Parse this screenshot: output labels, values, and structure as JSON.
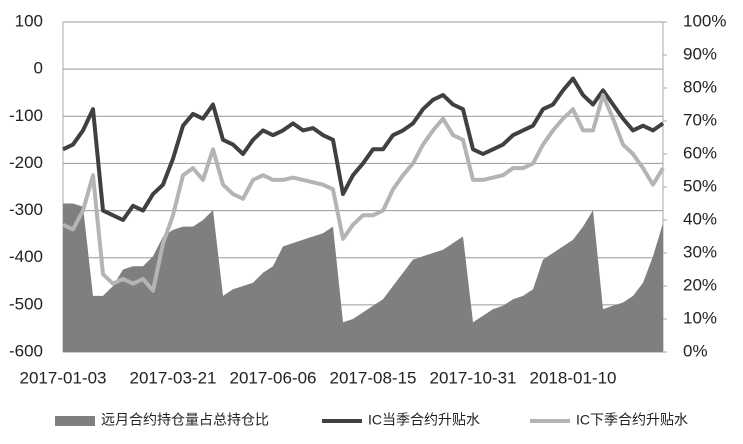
{
  "chart_data": {
    "type": "combo",
    "categories": [
      "2017-01-03",
      null,
      null,
      null,
      null,
      null,
      null,
      null,
      null,
      null,
      null,
      "2017-03-21",
      null,
      null,
      null,
      null,
      null,
      null,
      null,
      null,
      null,
      "2017-06-06",
      null,
      null,
      null,
      null,
      null,
      null,
      null,
      null,
      null,
      "2017-08-15",
      null,
      null,
      null,
      null,
      null,
      null,
      null,
      null,
      null,
      "2017-10-31",
      null,
      null,
      null,
      null,
      null,
      null,
      null,
      null,
      null,
      "2018-01-10",
      null,
      null,
      null,
      null,
      null,
      null,
      null,
      null,
      null
    ],
    "series": [
      {
        "name": "远月合约持仓量占总持仓比",
        "type": "area",
        "axis": "y2",
        "color": "#7f7f7f",
        "values": [
          45,
          45,
          44,
          17,
          17,
          20,
          25,
          26,
          26,
          29,
          35,
          37,
          38,
          38,
          40,
          43,
          17,
          19,
          20,
          21,
          24,
          26,
          32,
          33,
          34,
          35,
          36,
          38,
          9,
          10,
          12,
          14,
          16,
          20,
          24,
          28,
          29,
          30,
          31,
          33,
          35,
          9,
          11,
          13,
          14,
          16,
          17,
          19,
          28,
          30,
          32,
          34,
          38,
          43,
          13,
          14,
          15,
          17,
          21,
          29,
          39
        ]
      },
      {
        "name": "IC当季合约升贴水",
        "type": "line",
        "color": "#404040",
        "values": [
          -170,
          -160,
          -130,
          -85,
          -300,
          -310,
          -320,
          -290,
          -300,
          -265,
          -245,
          -190,
          -120,
          -95,
          -105,
          -75,
          -150,
          -160,
          -180,
          -150,
          -130,
          -140,
          -130,
          -115,
          -130,
          -125,
          -140,
          -150,
          -265,
          -225,
          -200,
          -170,
          -170,
          -140,
          -130,
          -115,
          -85,
          -65,
          -55,
          -75,
          -85,
          -170,
          -180,
          -170,
          -160,
          -140,
          -130,
          -120,
          -85,
          -75,
          -45,
          -20,
          -55,
          -75,
          -45,
          -75,
          -105,
          -130,
          -120,
          -130,
          -115
        ]
      },
      {
        "name": "IC下季合约升贴水",
        "type": "line",
        "color": "#b4b4b4",
        "values": [
          -330,
          -340,
          -300,
          -225,
          -435,
          -455,
          -445,
          -455,
          -445,
          -470,
          -370,
          -310,
          -225,
          -210,
          -235,
          -170,
          -245,
          -265,
          -275,
          -235,
          -225,
          -235,
          -235,
          -230,
          -235,
          -240,
          -245,
          -255,
          -360,
          -330,
          -310,
          -310,
          -300,
          -255,
          -225,
          -200,
          -160,
          -130,
          -105,
          -140,
          -150,
          -235,
          -235,
          -230,
          -225,
          -210,
          -210,
          -200,
          -160,
          -130,
          -105,
          -85,
          -130,
          -130,
          -55,
          -105,
          -160,
          -180,
          -210,
          -245,
          -210
        ]
      }
    ],
    "ylim": [
      -600,
      100
    ],
    "yticks": [
      -600,
      -500,
      -400,
      -300,
      -200,
      -100,
      0,
      100
    ],
    "y2lim": [
      0,
      100
    ],
    "y2ticks": [
      {
        "value": 0,
        "label": "0%"
      },
      {
        "value": 10,
        "label": "10%"
      },
      {
        "value": 20,
        "label": "20%"
      },
      {
        "value": 30,
        "label": "30%"
      },
      {
        "value": 40,
        "label": "40%"
      },
      {
        "value": 50,
        "label": "50%"
      },
      {
        "value": 60,
        "label": "60%"
      },
      {
        "value": 70,
        "label": "70%"
      },
      {
        "value": 80,
        "label": "80%"
      },
      {
        "value": 90,
        "label": "90%"
      },
      {
        "value": 100,
        "label": "100%"
      }
    ],
    "grid": true,
    "legend": "bottom"
  }
}
